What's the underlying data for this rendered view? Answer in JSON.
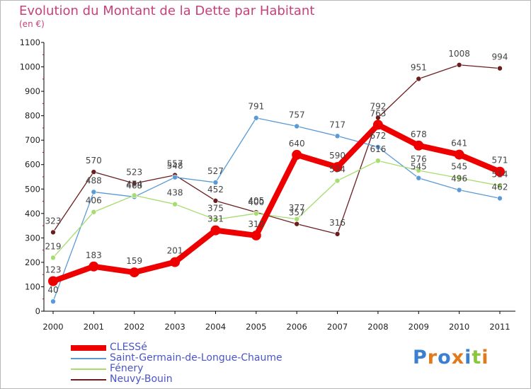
{
  "title": "Evolution du Montant de la Dette par Habitant",
  "subtitle": "(en €)",
  "logo_text": "Proxiti",
  "chart_data": {
    "type": "line",
    "title": "Evolution du Montant de la Dette par Habitant",
    "ylabel": "(en €)",
    "xlabel": "",
    "x": [
      "2000",
      "2001",
      "2002",
      "2003",
      "2004",
      "2005",
      "2006",
      "2007",
      "2008",
      "2009",
      "2010",
      "2011"
    ],
    "y_ticks": [
      "0",
      "100",
      "200",
      "300",
      "400",
      "500",
      "600",
      "700",
      "800",
      "900",
      "1000",
      "1100"
    ],
    "ylim": [
      0,
      1100
    ],
    "grid": false,
    "legend_position": "bottom-left",
    "series": [
      {
        "name": "CLESSé",
        "color": "#ee0000",
        "values": [
          123,
          183,
          159,
          201,
          331,
          310,
          640,
          590,
          763,
          678,
          641,
          571
        ]
      },
      {
        "name": "Saint-Germain-de-Longue-Chaume",
        "color": "#5a9ad6",
        "values": [
          40,
          488,
          468,
          548,
          527,
          791,
          757,
          717,
          672,
          545,
          496,
          462
        ]
      },
      {
        "name": "Fénery",
        "color": "#a6dd6e",
        "values": [
          219,
          406,
          474,
          438,
          375,
          400,
          377,
          534,
          616,
          576,
          545,
          514
        ]
      },
      {
        "name": "Neuvy-Bouin",
        "color": "#6b1e1e",
        "values": [
          323,
          570,
          523,
          557,
          452,
          405,
          357,
          316,
          792,
          951,
          1008,
          994
        ]
      }
    ]
  }
}
